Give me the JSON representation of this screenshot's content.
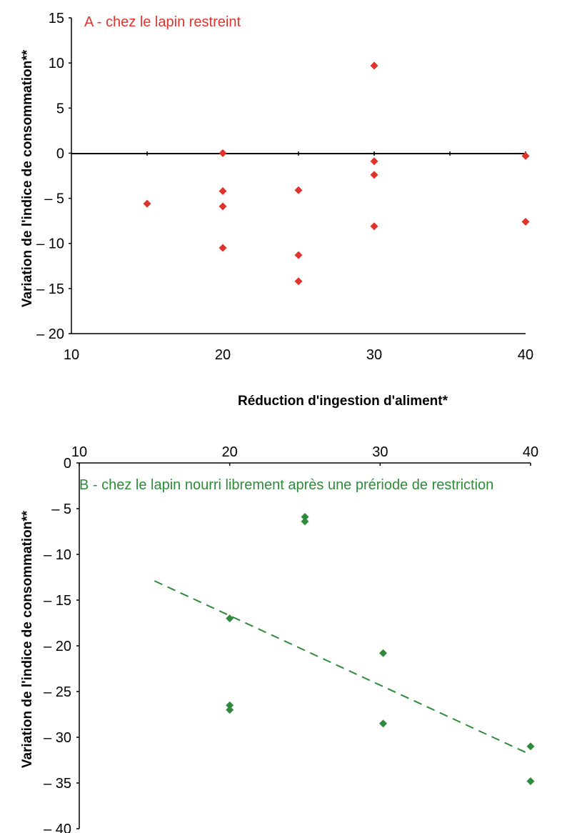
{
  "chart_data": [
    {
      "type": "scatter",
      "title": "A - chez le lapin restreint",
      "xlabel": "Réduction d'ingestion d'aliment*",
      "ylabel": "Variation  de l'indice  de  consommation**",
      "xlim": [
        10,
        40
      ],
      "ylim": [
        -20,
        15
      ],
      "xticks": [
        "10",
        "20",
        "30",
        "40"
      ],
      "yticks": [
        "15",
        "10",
        "5",
        "0",
        "– 5",
        "– 10",
        "– 15",
        "– 20"
      ],
      "marker_color": "#e0332b",
      "title_color": "#e0332b",
      "grid": false,
      "zero_line": true,
      "series": [
        {
          "points": [
            [
              15,
              -5.6
            ],
            [
              20,
              0.0
            ],
            [
              20,
              -4.2
            ],
            [
              20,
              -5.9
            ],
            [
              20,
              -10.5
            ],
            [
              25,
              -4.1
            ],
            [
              25,
              -11.3
            ],
            [
              25,
              -14.2
            ],
            [
              30,
              9.7
            ],
            [
              30,
              -0.9
            ],
            [
              30,
              -2.4
            ],
            [
              30,
              -8.1
            ],
            [
              40,
              -0.3
            ],
            [
              40,
              -7.6
            ]
          ]
        }
      ]
    },
    {
      "type": "scatter",
      "title": "B - chez le lapin nourri librement après une prériode de restriction",
      "xlabel": "",
      "ylabel": "Variation de l'indice  de consommation**",
      "xlim": [
        10,
        40
      ],
      "ylim": [
        -40,
        0
      ],
      "x_axis_position": "top",
      "xticks": [
        "10",
        "20",
        "30",
        "40"
      ],
      "yticks": [
        "0",
        "– 5",
        "– 10",
        "– 15",
        "– 20",
        "– 25",
        "– 30",
        "– 35",
        "– 40"
      ],
      "marker_color": "#2e8b3a",
      "title_color": "#2e8b3a",
      "grid": false,
      "series": [
        {
          "points": [
            [
              20,
              -17.0
            ],
            [
              20,
              -26.5
            ],
            [
              20,
              -27.0
            ],
            [
              25,
              -5.9
            ],
            [
              25,
              -6.4
            ],
            [
              30.2,
              -20.8
            ],
            [
              30.2,
              -28.5
            ],
            [
              40,
              -31.0
            ],
            [
              40,
              -34.8
            ]
          ]
        }
      ],
      "trendline": {
        "style": "dashed",
        "from": [
          15,
          -12.9
        ],
        "to": [
          40,
          -31.9
        ]
      }
    }
  ]
}
